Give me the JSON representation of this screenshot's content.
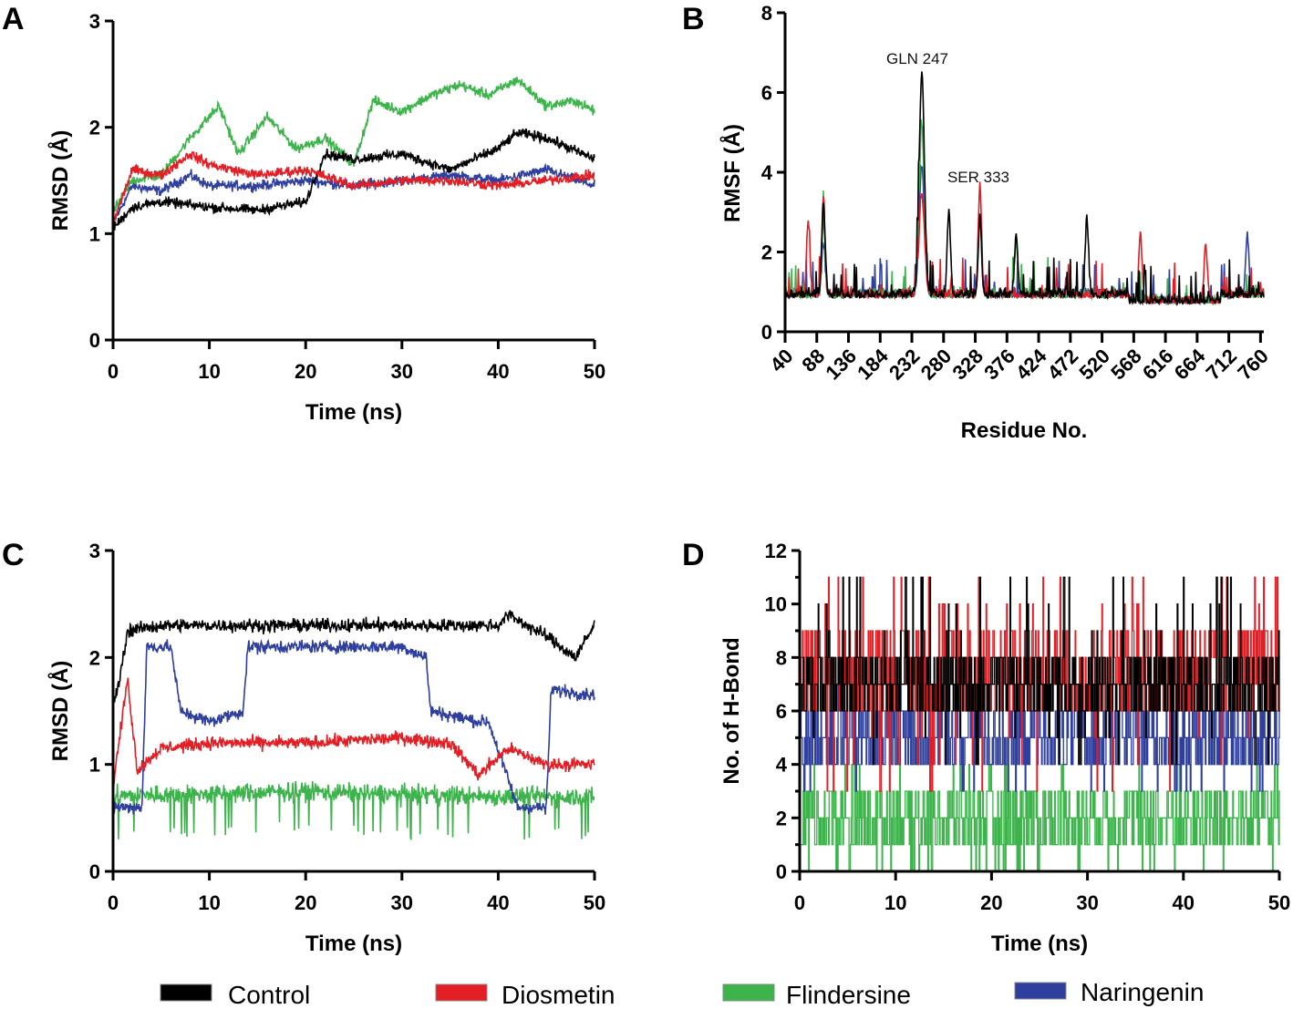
{
  "series_legend": [
    {
      "name": "Control",
      "color": "#000000"
    },
    {
      "name": "Diosmetin",
      "color": "#e31e24"
    },
    {
      "name": "Flindersine",
      "color": "#3cb44b"
    },
    {
      "name": "Naringenin",
      "color": "#2e3f9e"
    }
  ],
  "chart_data": [
    {
      "panel": "A",
      "type": "line",
      "title": "",
      "xlabel": "Time (ns)",
      "ylabel": "RMSD (Å)",
      "xlim": [
        0,
        50
      ],
      "ylim": [
        0,
        3
      ],
      "xticks": [
        "0",
        "10",
        "20",
        "30",
        "40",
        "50"
      ],
      "yticks": [
        "0",
        "1",
        "2",
        "3"
      ],
      "series": [
        {
          "name": "Control",
          "x": [
            0,
            2,
            5,
            10,
            15,
            20,
            22,
            25,
            30,
            35,
            40,
            42,
            45,
            50
          ],
          "y": [
            1.05,
            1.25,
            1.3,
            1.25,
            1.22,
            1.3,
            1.75,
            1.7,
            1.75,
            1.6,
            1.8,
            1.95,
            1.9,
            1.7
          ]
        },
        {
          "name": "Diosmetin",
          "x": [
            0,
            2,
            5,
            8,
            10,
            15,
            20,
            25,
            30,
            35,
            40,
            45,
            50
          ],
          "y": [
            1.1,
            1.6,
            1.55,
            1.75,
            1.65,
            1.55,
            1.6,
            1.45,
            1.5,
            1.5,
            1.45,
            1.5,
            1.55
          ]
        },
        {
          "name": "Flindersine",
          "x": [
            0,
            2,
            5,
            8,
            11,
            13,
            16,
            19,
            22,
            25,
            27,
            30,
            33,
            36,
            39,
            42,
            45,
            48,
            50
          ],
          "y": [
            1.2,
            1.5,
            1.55,
            1.9,
            2.2,
            1.75,
            2.1,
            1.8,
            1.9,
            1.65,
            2.25,
            2.15,
            2.3,
            2.4,
            2.3,
            2.45,
            2.2,
            2.25,
            2.15
          ]
        },
        {
          "name": "Naringenin",
          "x": [
            0,
            2,
            5,
            8,
            10,
            15,
            20,
            25,
            30,
            35,
            40,
            45,
            50
          ],
          "y": [
            1.1,
            1.45,
            1.4,
            1.55,
            1.45,
            1.45,
            1.5,
            1.45,
            1.5,
            1.55,
            1.5,
            1.6,
            1.45
          ]
        }
      ]
    },
    {
      "panel": "B",
      "type": "line",
      "title": "",
      "xlabel": "Residue No.",
      "ylabel": "RMSF (Å)",
      "xlim": [
        40,
        765
      ],
      "ylim": [
        0,
        8
      ],
      "xticks": [
        "40",
        "88",
        "136",
        "184",
        "232",
        "280",
        "328",
        "376",
        "424",
        "472",
        "520",
        "568",
        "616",
        "664",
        "712",
        "760"
      ],
      "yticks": [
        "0",
        "2",
        "4",
        "6",
        "8"
      ],
      "annotations": [
        {
          "text": "GLN 247",
          "x": 247,
          "y": 6.5
        },
        {
          "text": "SER 333",
          "x": 333,
          "y": 3.6
        }
      ],
      "series": [
        {
          "name": "Control",
          "peaks": [
            [
              247,
              6.5
            ],
            [
              98,
              3.3
            ],
            [
              288,
              3.1
            ],
            [
              335,
              2.9
            ],
            [
              497,
              2.9
            ],
            [
              390,
              2.5
            ]
          ],
          "baseline": 1.0
        },
        {
          "name": "Diosmetin",
          "peaks": [
            [
              247,
              3.5
            ],
            [
              98,
              3.4
            ],
            [
              335,
              3.7
            ],
            [
              578,
              2.7
            ],
            [
              75,
              2.8
            ],
            [
              677,
              2.4
            ]
          ],
          "baseline": 1.0
        },
        {
          "name": "Flindersine",
          "peaks": [
            [
              247,
              5.2
            ],
            [
              98,
              2.9
            ],
            [
              335,
              3.0
            ],
            [
              390,
              2.2
            ]
          ],
          "baseline": 1.0
        },
        {
          "name": "Naringenin",
          "peaks": [
            [
              247,
              4.2
            ],
            [
              98,
              2.3
            ],
            [
              335,
              3.0
            ],
            [
              740,
              2.5
            ]
          ],
          "baseline": 1.0
        }
      ]
    },
    {
      "panel": "C",
      "type": "line",
      "title": "",
      "xlabel": "Time (ns)",
      "ylabel": "RMSD (Å)",
      "xlim": [
        0,
        50
      ],
      "ylim": [
        0,
        3
      ],
      "xticks": [
        "0",
        "10",
        "20",
        "30",
        "40",
        "50"
      ],
      "yticks": [
        "0",
        "1",
        "2",
        "3"
      ],
      "series": [
        {
          "name": "Control",
          "x": [
            0,
            0.5,
            1.5,
            5,
            10,
            20,
            30,
            40,
            41,
            45,
            48,
            50
          ],
          "y": [
            1.6,
            1.7,
            2.25,
            2.3,
            2.3,
            2.3,
            2.3,
            2.3,
            2.4,
            2.2,
            2.0,
            2.3
          ]
        },
        {
          "name": "Diosmetin",
          "x": [
            0,
            1.5,
            2.5,
            5,
            10,
            20,
            30,
            35,
            38,
            41,
            45,
            50
          ],
          "y": [
            0.8,
            1.8,
            0.95,
            1.15,
            1.2,
            1.2,
            1.25,
            1.2,
            0.9,
            1.15,
            1.0,
            1.0
          ]
        },
        {
          "name": "Flindersine",
          "x": [
            0,
            5,
            10,
            20,
            30,
            40,
            50
          ],
          "y": [
            0.7,
            0.72,
            0.72,
            0.75,
            0.72,
            0.7,
            0.7
          ]
        },
        {
          "name": "Naringenin",
          "x": [
            0,
            3,
            3.5,
            6,
            7,
            10,
            13.5,
            14,
            20,
            30,
            32.5,
            33,
            38,
            39,
            42,
            45,
            45.5,
            50
          ],
          "y": [
            0.6,
            0.6,
            2.1,
            2.1,
            1.5,
            1.4,
            1.5,
            2.1,
            2.1,
            2.1,
            2.0,
            1.5,
            1.4,
            1.4,
            0.6,
            0.6,
            1.7,
            1.65
          ]
        }
      ]
    },
    {
      "panel": "D",
      "type": "line",
      "title": "",
      "xlabel": "Time (ns)",
      "ylabel": "No. of H-Bond",
      "xlim": [
        0,
        50
      ],
      "ylim": [
        0,
        12
      ],
      "xticks": [
        "0",
        "10",
        "20",
        "30",
        "40",
        "50"
      ],
      "yticks": [
        "0",
        "2",
        "4",
        "6",
        "8",
        "10",
        "12"
      ],
      "series": [
        {
          "name": "Control",
          "range": [
            4,
            11
          ],
          "typical": [
            6,
            8
          ]
        },
        {
          "name": "Diosmetin",
          "range": [
            3,
            11
          ],
          "typical": [
            6,
            9
          ]
        },
        {
          "name": "Flindersine",
          "range": [
            0,
            4
          ],
          "typical": [
            1,
            3
          ]
        },
        {
          "name": "Naringenin",
          "range": [
            3,
            7
          ],
          "typical": [
            4,
            6
          ]
        }
      ]
    }
  ]
}
